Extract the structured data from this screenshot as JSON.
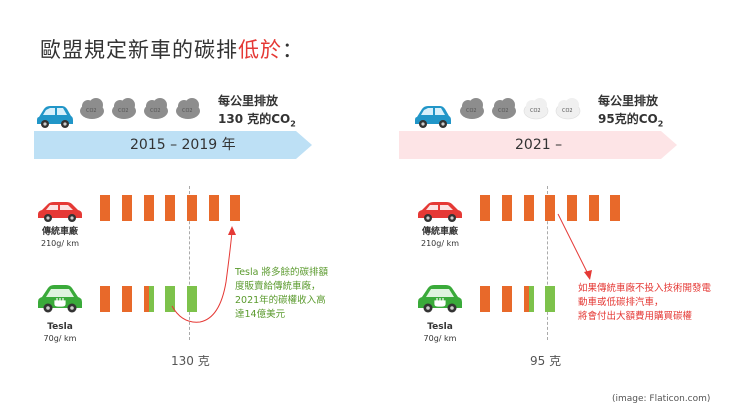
{
  "title": {
    "main": "歐盟規定新車的碳排",
    "highlight": "低於",
    "colon": "："
  },
  "cloud_label": "CO2",
  "panels": [
    {
      "emission_line1": "每公里排放",
      "emission_line2": "130 克的CO",
      "emission_sub": "2",
      "banner_period": "2015 – 2019 年",
      "banner_color": "#bde0f5",
      "threshold_label": "130 克",
      "traditional": {
        "label": "傳統車廠",
        "rate": "210g/ km",
        "bars": 7
      },
      "tesla": {
        "label": "Tesla",
        "rate": "70g/ km",
        "bars": 3
      },
      "note": [
        "Tesla 將多餘的碳排額",
        "度販賣給傳統車廠，",
        "2021年的碳權收入高",
        "達14億美元"
      ]
    },
    {
      "emission_line1": "每公里排放",
      "emission_line2": "95克的CO",
      "emission_sub": "2",
      "banner_period": "2021 –",
      "banner_color": "#fde4e6",
      "threshold_label": "95 克",
      "traditional": {
        "label": "傳統車廠",
        "rate": "210g/ km",
        "bars": 7
      },
      "tesla": {
        "label": "Tesla",
        "rate": "70g/ km",
        "bars": 3
      },
      "note": [
        "如果傳統車廠不投入技術開發電",
        "動車或低碳排汽車，",
        "將會付出大額費用購買碳權"
      ]
    }
  ],
  "credit": "(image: Flaticon.com)",
  "colors": {
    "orange": "#e8692a",
    "green": "#7dc24b",
    "red": "#e53935",
    "red_car": "#e53935",
    "blue_car": "#2196c8",
    "green_car": "#3aaa3a"
  }
}
